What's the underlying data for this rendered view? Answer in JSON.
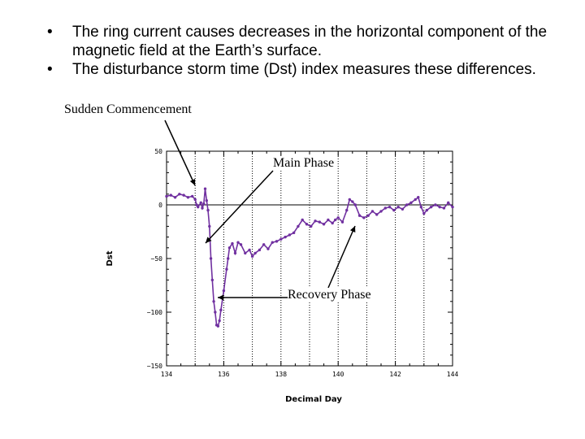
{
  "slide": {
    "bullets": [
      "The ring current causes decreases in the horizontal component of the  magnetic field at the Earth’s surface.",
      "The disturbance storm time (Dst) index measures these differences."
    ],
    "bullet_symbol": "•"
  },
  "annotations": {
    "sudden_commencement": "Sudden Commencement",
    "main_phase": "Main Phase",
    "recovery_phase": "Recovery Phase"
  },
  "chart_data": {
    "type": "line",
    "title": "",
    "xlabel": "Decimal  Day",
    "ylabel": "Dst",
    "xlim": [
      134,
      144
    ],
    "ylim": [
      -150,
      50
    ],
    "xticks": [
      134,
      136,
      138,
      140,
      142,
      144
    ],
    "xtick_labels": [
      "134",
      "136",
      "138",
      "140",
      "142",
      "144"
    ],
    "yticks": [
      50,
      0,
      -50,
      -100,
      -150
    ],
    "ytick_labels": [
      "50",
      "0",
      "−50",
      "−100",
      "−150"
    ],
    "grid": "vertical dotted",
    "line_color": "#7030a0",
    "series": [
      {
        "x": [
          134.0,
          134.15,
          134.3,
          134.45,
          134.6,
          134.75,
          134.9,
          135.0,
          135.05,
          135.1,
          135.2,
          135.25,
          135.3,
          135.35,
          135.4,
          135.45,
          135.5,
          135.55,
          135.6,
          135.65,
          135.7,
          135.75,
          135.8,
          135.85,
          135.9,
          136.0,
          136.1,
          136.15,
          136.2,
          136.3,
          136.4,
          136.5,
          136.6,
          136.75,
          136.9,
          137.0,
          137.1,
          137.25,
          137.4,
          137.55,
          137.7,
          137.85,
          138.0,
          138.15,
          138.3,
          138.45,
          138.6,
          138.75,
          138.9,
          139.05,
          139.2,
          139.35,
          139.5,
          139.65,
          139.8,
          139.9,
          140.0,
          140.15,
          140.3,
          140.4,
          140.5,
          140.6,
          140.75,
          140.9,
          141.05,
          141.2,
          141.35,
          141.5,
          141.65,
          141.8,
          141.95,
          142.1,
          142.25,
          142.4,
          142.55,
          142.7,
          142.8,
          142.9,
          143.0,
          143.1,
          143.25,
          143.4,
          143.55,
          143.7,
          143.85,
          144.0
        ],
        "y": [
          8,
          9,
          7,
          10,
          9,
          7,
          8,
          5,
          0,
          -2,
          2,
          -3,
          1,
          15,
          4,
          -5,
          -20,
          -50,
          -70,
          -90,
          -100,
          -112,
          -113,
          -108,
          -98,
          -80,
          -60,
          -50,
          -40,
          -36,
          -45,
          -35,
          -37,
          -45,
          -42,
          -48,
          -45,
          -42,
          -37,
          -41,
          -35,
          -34,
          -32,
          -30,
          -28,
          -26,
          -20,
          -14,
          -18,
          -20,
          -15,
          -16,
          -18,
          -14,
          -17,
          -14,
          -12,
          -16,
          -5,
          5,
          3,
          0,
          -10,
          -12,
          -10,
          -6,
          -9,
          -6,
          -3,
          -2,
          -5,
          -2,
          -4,
          0,
          2,
          5,
          7,
          -2,
          -8,
          -5,
          -2,
          0,
          -2,
          -3,
          2,
          -2
        ]
      }
    ]
  }
}
